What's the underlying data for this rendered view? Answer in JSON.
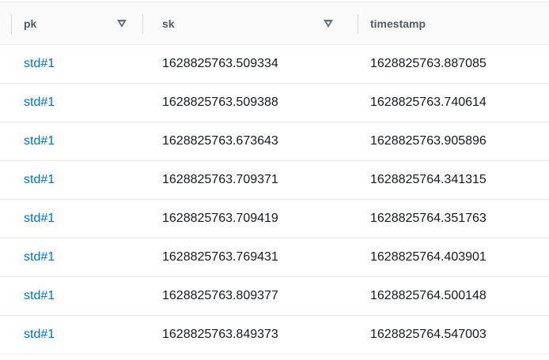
{
  "colors": {
    "link_blue": "#0073bb",
    "cell_text": "#16191f",
    "header_text": "#545b64",
    "header_bg": "#fafafa",
    "border_light": "#eaeded",
    "divider": "#d5dbdb",
    "caret_icon": "#687078"
  },
  "table": {
    "columns": [
      {
        "key": "pk",
        "label": "pk",
        "has_caret": true
      },
      {
        "key": "sk",
        "label": "sk",
        "has_caret": true
      },
      {
        "key": "timestamp",
        "label": "timestamp",
        "has_caret": false
      }
    ],
    "rows": [
      {
        "pk": "std#1",
        "sk": "1628825763.509334",
        "timestamp": "1628825763.887085"
      },
      {
        "pk": "std#1",
        "sk": "1628825763.509388",
        "timestamp": "1628825763.740614"
      },
      {
        "pk": "std#1",
        "sk": "1628825763.673643",
        "timestamp": "1628825763.905896"
      },
      {
        "pk": "std#1",
        "sk": "1628825763.709371",
        "timestamp": "1628825764.341315"
      },
      {
        "pk": "std#1",
        "sk": "1628825763.709419",
        "timestamp": "1628825764.351763"
      },
      {
        "pk": "std#1",
        "sk": "1628825763.769431",
        "timestamp": "1628825764.403901"
      },
      {
        "pk": "std#1",
        "sk": "1628825763.809377",
        "timestamp": "1628825764.500148"
      },
      {
        "pk": "std#1",
        "sk": "1628825763.849373",
        "timestamp": "1628825764.547003"
      }
    ]
  }
}
